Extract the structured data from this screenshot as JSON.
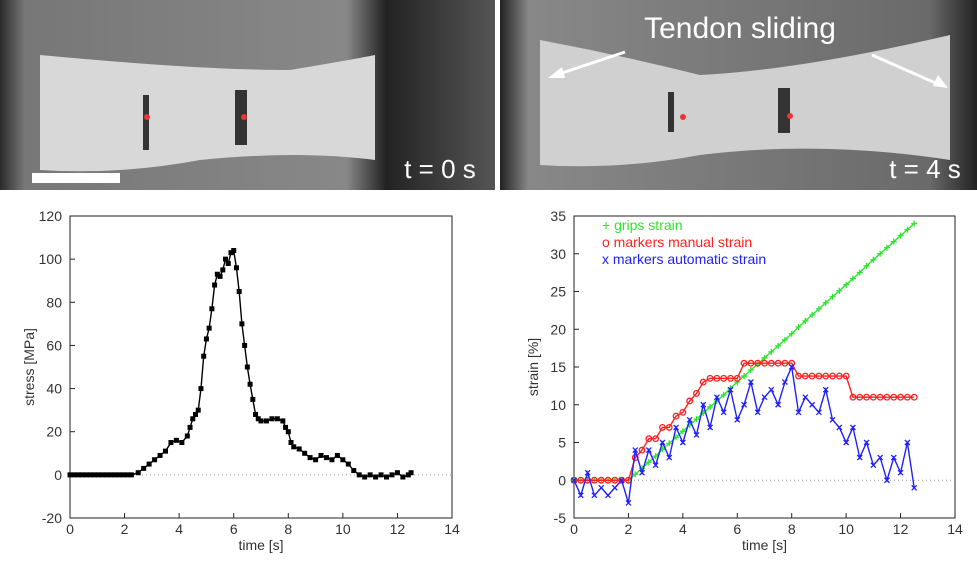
{
  "images": [
    {
      "label": "t = 0 s"
    },
    {
      "label": "t = 4 s",
      "annotation": "Tendon sliding"
    }
  ],
  "chart_data": [
    {
      "type": "line",
      "x_label": "time [s]",
      "y_label": "stress [MPa]",
      "xlim": [
        0,
        14
      ],
      "ylim": [
        -20,
        120
      ],
      "xticks": [
        0,
        2,
        4,
        6,
        8,
        10,
        12,
        14
      ],
      "yticks": [
        -20,
        0,
        20,
        40,
        60,
        80,
        100,
        120
      ],
      "zero_line": true,
      "x": [
        0,
        0.15,
        0.3,
        0.45,
        0.6,
        0.75,
        0.9,
        1.05,
        1.2,
        1.35,
        1.5,
        1.65,
        1.8,
        1.95,
        2.1,
        2.25,
        2.5,
        2.7,
        2.9,
        3.1,
        3.3,
        3.5,
        3.7,
        3.9,
        4.1,
        4.3,
        4.4,
        4.5,
        4.6,
        4.7,
        4.8,
        4.9,
        5.0,
        5.1,
        5.2,
        5.3,
        5.4,
        5.5,
        5.6,
        5.7,
        5.8,
        5.9,
        6.0,
        6.1,
        6.2,
        6.3,
        6.4,
        6.5,
        6.6,
        6.7,
        6.8,
        6.9,
        7.0,
        7.2,
        7.4,
        7.6,
        7.8,
        7.9,
        8.0,
        8.1,
        8.2,
        8.4,
        8.6,
        8.8,
        9.0,
        9.2,
        9.4,
        9.6,
        9.8,
        10.0,
        10.2,
        10.4,
        10.6,
        10.8,
        11.0,
        11.2,
        11.4,
        11.6,
        11.8,
        12.0,
        12.2,
        12.4,
        12.5
      ],
      "series": [
        {
          "color": "#000000",
          "marker": "square",
          "values": [
            0,
            0,
            0,
            0,
            0,
            0,
            0,
            0,
            0,
            0,
            0,
            0,
            0,
            0,
            0,
            0,
            1,
            3,
            5,
            7,
            9,
            11,
            15,
            16,
            15,
            18,
            22,
            26,
            28,
            30,
            40,
            55,
            63,
            68,
            77,
            88,
            93,
            92,
            95,
            100,
            98,
            103,
            104,
            96,
            85,
            70,
            60,
            50,
            42,
            35,
            28,
            26,
            25,
            25,
            26,
            26,
            25,
            22,
            20,
            15,
            13,
            12,
            10,
            8,
            7,
            9,
            8,
            7,
            9,
            7,
            5,
            2,
            0,
            -1,
            0,
            -1,
            0,
            -1,
            0,
            1,
            -1,
            0,
            1
          ]
        }
      ]
    },
    {
      "type": "line",
      "x_label": "time [s]",
      "y_label": "strain [%]",
      "xlim": [
        0,
        14
      ],
      "ylim": [
        -5,
        35
      ],
      "xticks": [
        0,
        2,
        4,
        6,
        8,
        10,
        12,
        14
      ],
      "yticks": [
        -5,
        0,
        5,
        10,
        15,
        20,
        25,
        30,
        35
      ],
      "zero_line": true,
      "legend": "upper-left",
      "x": [
        0,
        0.25,
        0.5,
        0.75,
        1,
        1.25,
        1.5,
        1.75,
        2,
        2.25,
        2.5,
        2.75,
        3,
        3.25,
        3.5,
        3.75,
        4,
        4.25,
        4.5,
        4.75,
        5,
        5.25,
        5.5,
        5.75,
        6,
        6.25,
        6.5,
        6.75,
        7,
        7.25,
        7.5,
        7.75,
        8,
        8.25,
        8.5,
        8.75,
        9,
        9.25,
        9.5,
        9.75,
        10,
        10.25,
        10.5,
        10.75,
        11,
        11.25,
        11.5,
        11.75,
        12,
        12.25,
        12.5
      ],
      "series": [
        {
          "name": "+ grips strain",
          "color": "#2ee62e",
          "marker": "plus",
          "values": [
            0,
            0,
            0,
            0,
            0,
            0,
            0,
            0,
            0,
            0.8,
            1.6,
            2.4,
            3.2,
            4.1,
            4.9,
            5.7,
            6.5,
            7.3,
            8.1,
            8.9,
            9.7,
            10.5,
            11.3,
            12.2,
            13.0,
            13.8,
            14.6,
            15.4,
            16.2,
            17.0,
            17.8,
            18.6,
            19.4,
            20.3,
            21.1,
            21.9,
            22.7,
            23.5,
            24.3,
            25.1,
            25.9,
            26.7,
            27.5,
            28.4,
            29.2,
            30.0,
            30.8,
            31.6,
            32.4,
            33.2,
            34.0
          ]
        },
        {
          "name": "o markers manual strain",
          "color": "#ff2020",
          "marker": "circle",
          "values": [
            0,
            0,
            0,
            0,
            0,
            0,
            0,
            0,
            0,
            3,
            4,
            5.5,
            5.5,
            7,
            7,
            8.5,
            9,
            10.5,
            11.5,
            13,
            13.5,
            13.5,
            13.5,
            13.5,
            13.5,
            15.5,
            15.5,
            15.5,
            15.5,
            15.5,
            15.5,
            15.5,
            15.5,
            13.8,
            13.8,
            13.8,
            13.8,
            13.8,
            13.8,
            13.8,
            13.8,
            11,
            11,
            11,
            11,
            11,
            11,
            11,
            11,
            11,
            11
          ]
        },
        {
          "name": "x markers automatic strain",
          "color": "#2020ff",
          "marker": "x",
          "values": [
            0,
            -2,
            1,
            -2,
            -1,
            -2,
            -1,
            0,
            -3,
            4,
            1,
            4,
            2,
            5,
            3,
            7,
            5,
            8,
            6,
            10,
            7,
            11,
            9,
            12,
            8,
            10,
            13,
            9,
            11,
            12,
            10,
            13,
            15,
            9,
            11,
            10,
            9,
            12,
            8,
            7,
            5,
            7,
            3,
            5,
            2,
            3,
            0,
            3,
            1,
            5,
            -1
          ]
        }
      ]
    }
  ]
}
